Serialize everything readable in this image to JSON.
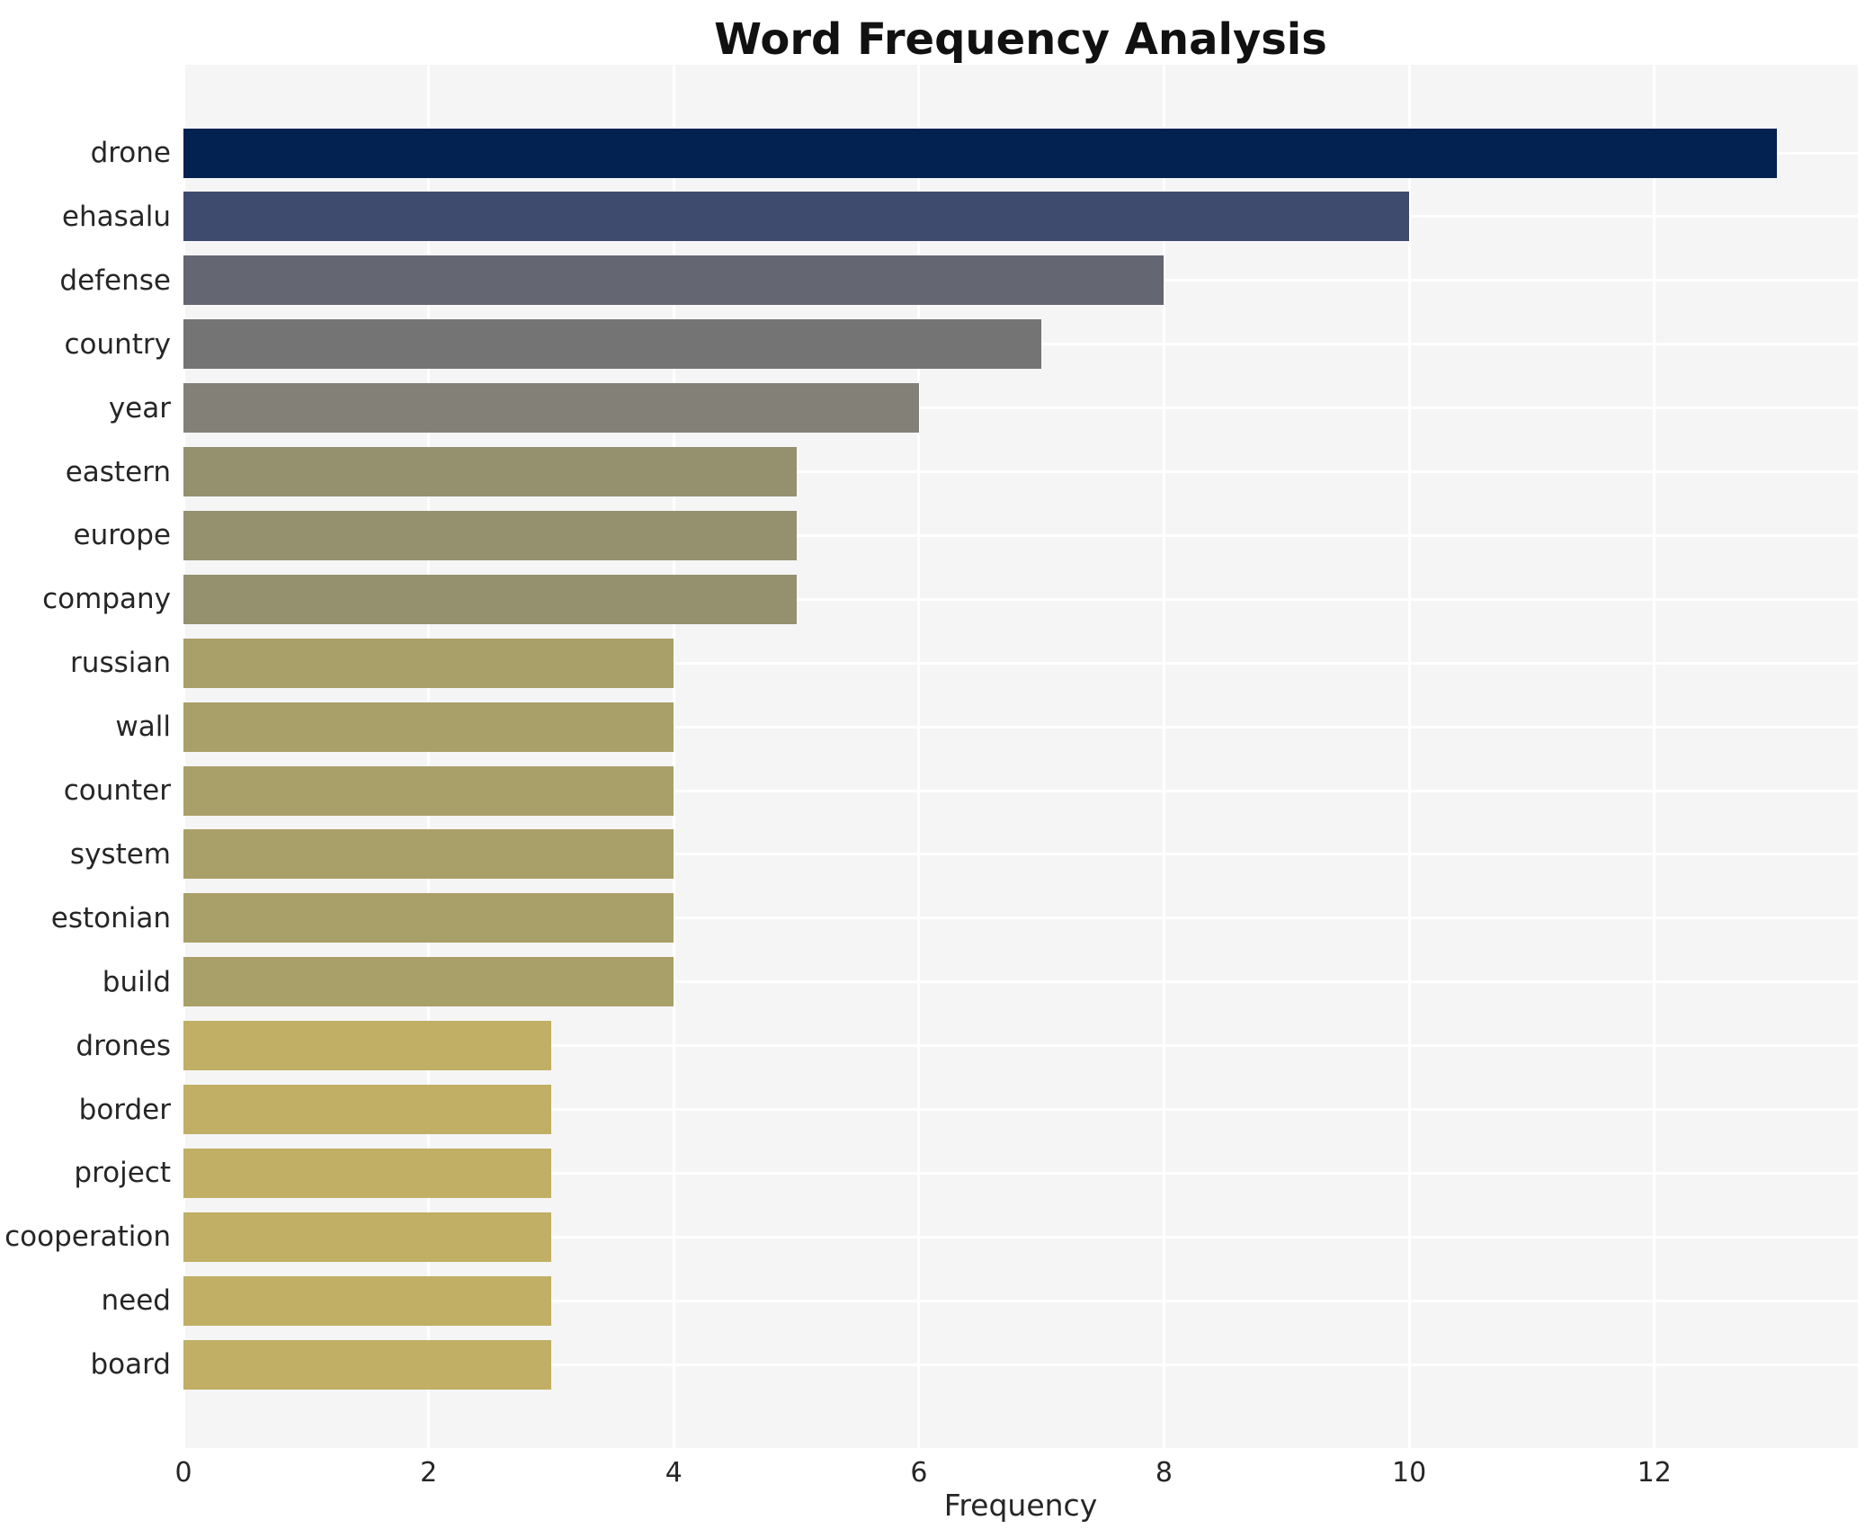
{
  "page": {
    "background": "#ffffff",
    "plot_background": "#f5f5f6",
    "grid_color": "#ffffff",
    "text_color": "#262626",
    "title_color": "#111111"
  },
  "chart_data": {
    "type": "bar",
    "orientation": "horizontal",
    "title": "Word Frequency Analysis",
    "xlabel": "Frequency",
    "ylabel": "",
    "grid": true,
    "legend": false,
    "xlim": [
      0,
      13.66
    ],
    "xticks": [
      0,
      2,
      4,
      6,
      8,
      10,
      12
    ],
    "categories": [
      "drone",
      "ehasalu",
      "defense",
      "country",
      "year",
      "eastern",
      "europe",
      "company",
      "russian",
      "wall",
      "counter",
      "system",
      "estonian",
      "build",
      "drones",
      "border",
      "project",
      "cooperation",
      "need",
      "board"
    ],
    "values": [
      13,
      10,
      8,
      7,
      6,
      5,
      5,
      5,
      4,
      4,
      4,
      4,
      4,
      4,
      3,
      3,
      3,
      3,
      3,
      3
    ],
    "bar_colors": [
      "#032251",
      "#3f4b6e",
      "#646672",
      "#747474",
      "#838177",
      "#95916f",
      "#95916f",
      "#95916f",
      "#a9a069",
      "#a9a069",
      "#a9a069",
      "#a9a069",
      "#a9a069",
      "#a9a069",
      "#c0af64",
      "#c0af64",
      "#c0af64",
      "#c0af64",
      "#c0af64",
      "#c0af64"
    ]
  }
}
